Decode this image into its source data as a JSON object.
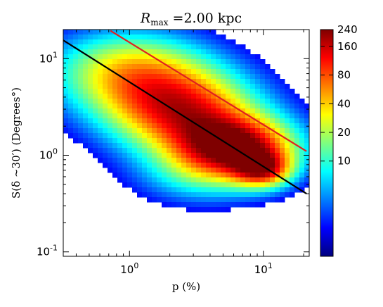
{
  "chart_data": {
    "type": "heatmap",
    "title": {
      "prefix": "R",
      "subscript": "max",
      "suffix": " =2.00 kpc"
    },
    "xlabel": {
      "main": "p (%)"
    },
    "ylabel": {
      "main": "S(δ ∼30′) (Degrees°)"
    },
    "xscale": "log",
    "yscale": "log",
    "xlim": [
      0.32,
      22
    ],
    "ylim": [
      0.09,
      20
    ],
    "x_ticks": [
      {
        "value": 1,
        "base": "10",
        "exp": "0"
      },
      {
        "value": 10,
        "base": "10",
        "exp": "1"
      }
    ],
    "y_ticks": [
      {
        "value": 0.1,
        "base": "10",
        "exp": "-1"
      },
      {
        "value": 1,
        "base": "10",
        "exp": "0"
      },
      {
        "value": 10,
        "base": "10",
        "exp": "1"
      }
    ],
    "lines": [
      {
        "color": "#e02020",
        "points": [
          [
            0.72,
            19.5
          ],
          [
            21,
            1.1
          ]
        ]
      },
      {
        "color": "#000000",
        "points": [
          [
            0.32,
            15.5
          ],
          [
            21,
            0.4
          ]
        ]
      }
    ],
    "density": {
      "blobs": [
        {
          "x": 1.0,
          "y": 7.5,
          "sx": 0.42,
          "sy": 0.3,
          "w": 0.55
        },
        {
          "x": 2.5,
          "y": 2.8,
          "sx": 0.4,
          "sy": 0.3,
          "w": 0.75
        },
        {
          "x": 6.5,
          "y": 1.2,
          "sx": 0.32,
          "sy": 0.22,
          "w": 0.85
        },
        {
          "x": 10.0,
          "y": 0.7,
          "sx": 0.15,
          "sy": 0.13,
          "w": 0.55
        },
        {
          "x": 3.5,
          "y": 0.6,
          "sx": 0.35,
          "sy": 0.22,
          "w": 0.25
        }
      ]
    },
    "colorbar": {
      "min": 1,
      "max": 240,
      "scale": "log",
      "ticks": [
        10,
        20,
        40,
        80,
        160,
        240
      ],
      "tick_labels": [
        "10",
        "20",
        "40",
        "80",
        "160",
        "240"
      ],
      "colormap": [
        "#00007f",
        "#0000ff",
        "#007fff",
        "#00ffff",
        "#7fff7f",
        "#ffff00",
        "#ff7f00",
        "#ff0000",
        "#7f0000"
      ]
    }
  }
}
